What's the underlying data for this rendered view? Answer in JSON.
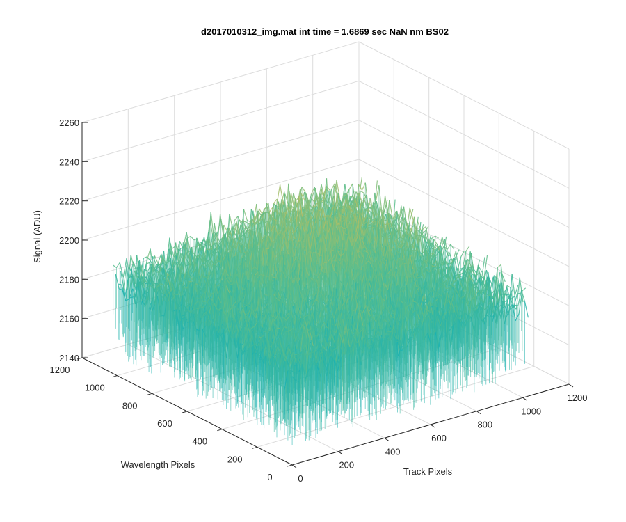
{
  "chart_data": {
    "type": "surface3d",
    "title": "d2017010312_img.mat int time = 1.6869 sec  NaN nm BS02",
    "xlabel": "Track Pixels",
    "ylabel": "Wavelength Pixels",
    "zlabel": "Signal (ADU)",
    "xlim": [
      0,
      1200
    ],
    "ylim": [
      0,
      1200
    ],
    "zlim": [
      2140,
      2260
    ],
    "x_ticks": [
      "0",
      "200",
      "400",
      "600",
      "800",
      "1000",
      "1200"
    ],
    "y_ticks": [
      "0",
      "200",
      "400",
      "600",
      "800",
      "1000",
      "1200"
    ],
    "z_ticks": [
      "2140",
      "2160",
      "2180",
      "2200",
      "2220",
      "2240",
      "2260"
    ],
    "data_extent": {
      "x": [
        1,
        1024
      ],
      "y": [
        1,
        1024
      ]
    },
    "surface_mean": 2195,
    "surface_min": 2150,
    "surface_max": 2250,
    "grid": true,
    "colormap": "parula"
  }
}
